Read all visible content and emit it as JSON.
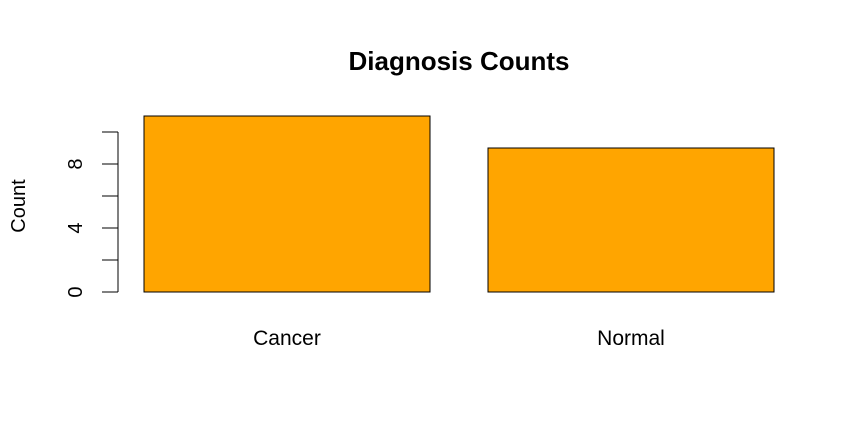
{
  "chart_data": {
    "type": "bar",
    "title": "Diagnosis Counts",
    "xlabel": "",
    "ylabel": "Count",
    "categories": [
      "Cancer",
      "Normal"
    ],
    "values": [
      11,
      9
    ],
    "ylim": [
      0,
      11
    ],
    "yticks": [
      0,
      2,
      4,
      6,
      8,
      10
    ],
    "ytick_labels": [
      "0",
      "4",
      "8"
    ],
    "labeled_tick_values": [
      0,
      4,
      8
    ],
    "bar_color": "#FFA500",
    "bar_border_color": "#000000",
    "grid": false,
    "legend": "none"
  }
}
